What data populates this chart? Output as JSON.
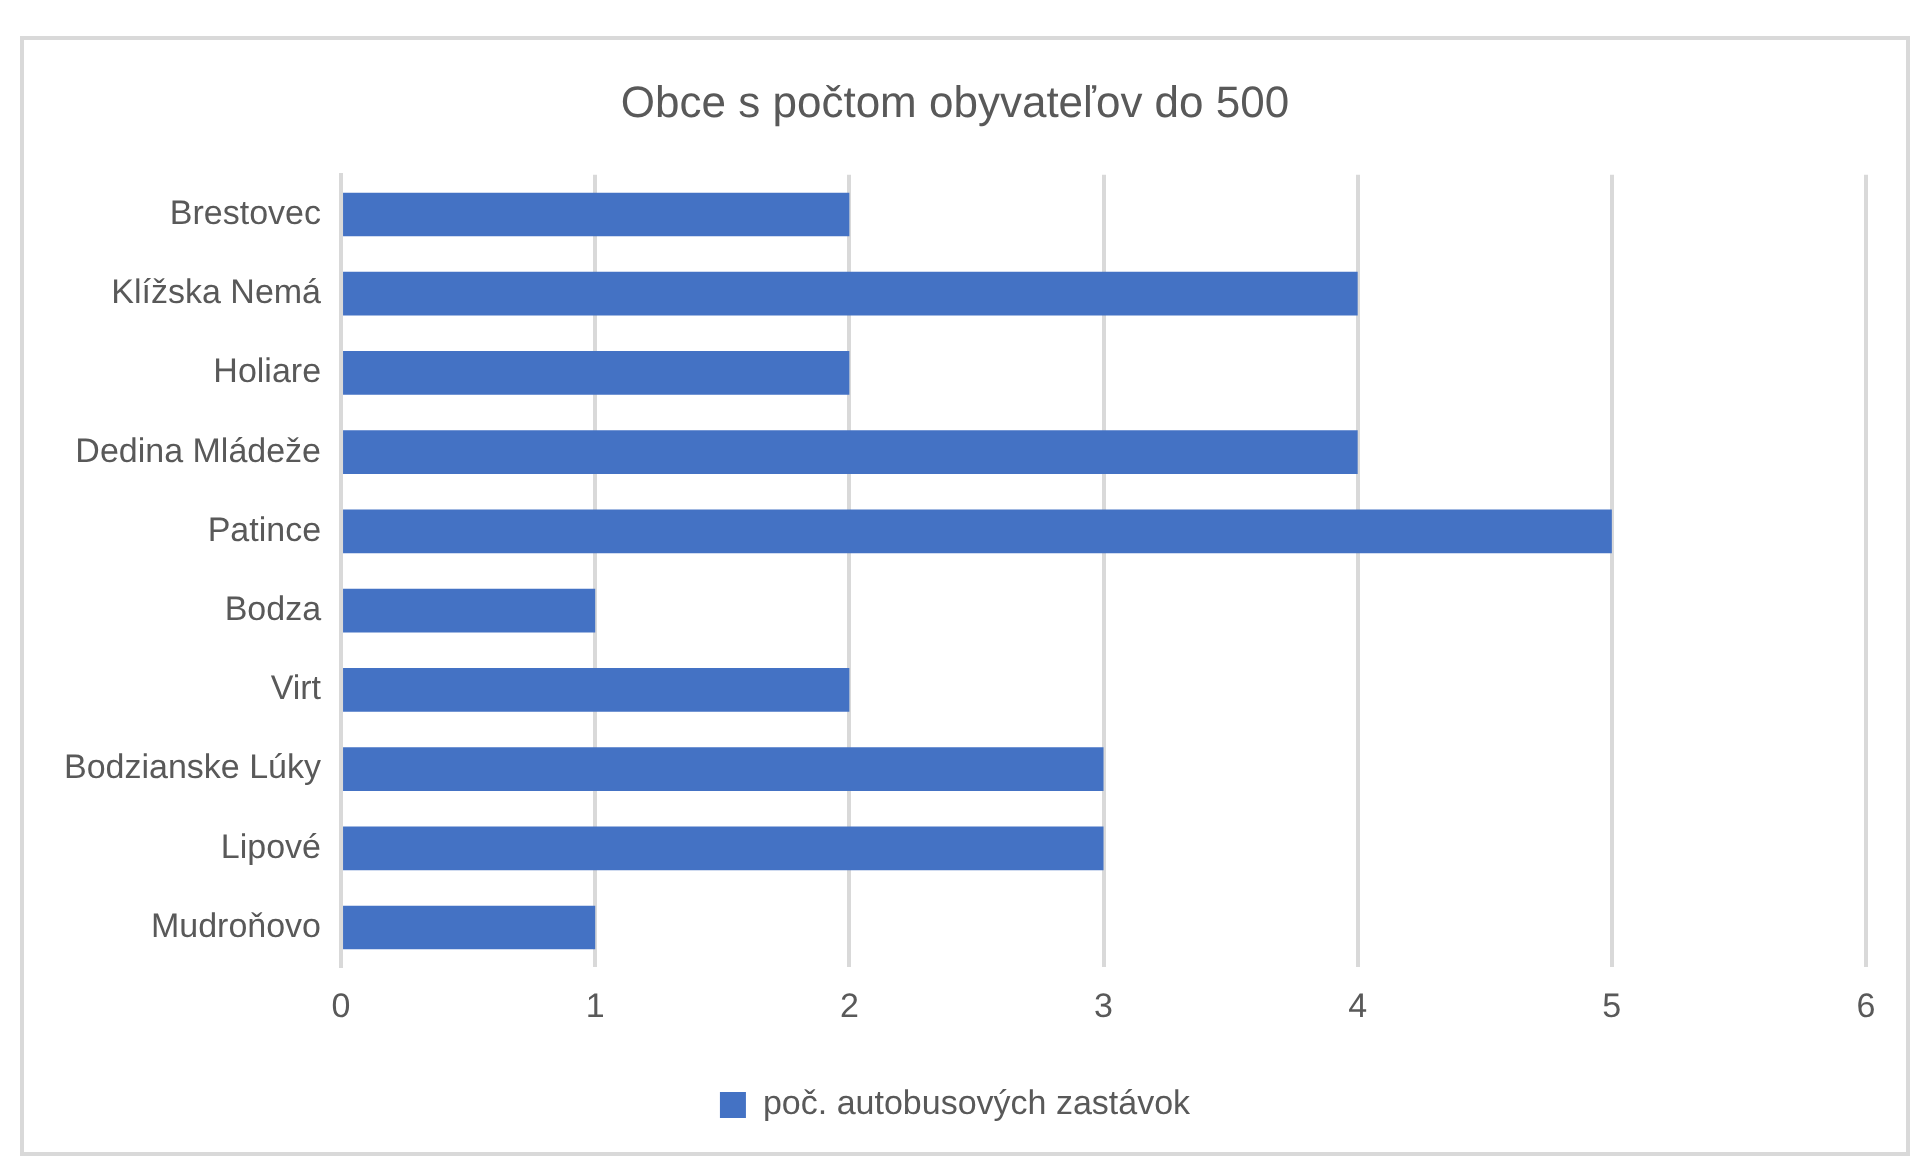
{
  "chart_data": {
    "type": "bar",
    "orientation": "horizontal",
    "title": "Obce s počtom obyvateľov do 500",
    "categories": [
      "Brestovec",
      "Klížska Nemá",
      "Holiare",
      "Dedina Mládeže",
      "Patince",
      "Bodza",
      "Virt",
      "Bodzianske Lúky",
      "Lipové",
      "Mudroňovo"
    ],
    "series": [
      {
        "name": "poč. autobusových zastávok",
        "color": "#4472c4",
        "values": [
          2,
          4,
          2,
          4,
          5,
          1,
          2,
          3,
          3,
          1
        ]
      }
    ],
    "xlim": [
      0,
      6
    ],
    "xticks": [
      0,
      1,
      2,
      3,
      4,
      5,
      6
    ],
    "grid": "x",
    "legend": "bottom"
  }
}
